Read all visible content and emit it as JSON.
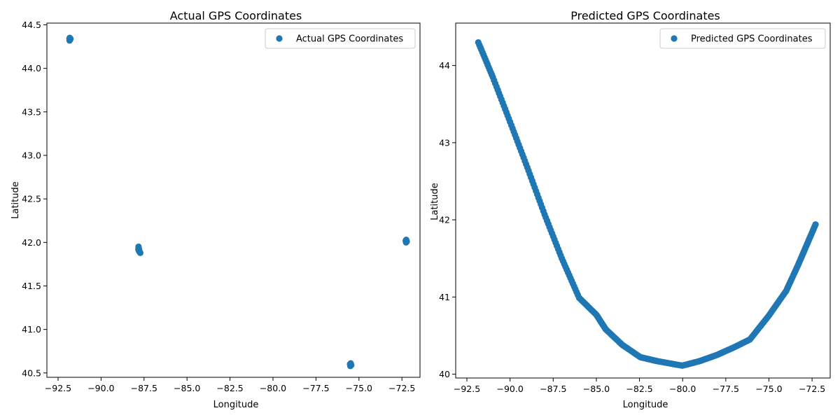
{
  "chart_data": [
    {
      "type": "scatter",
      "title": "Actual GPS Coordinates",
      "xlabel": "Longitude",
      "ylabel": "Latitude",
      "xlim": [
        -93.15,
        -71.45
      ],
      "ylim": [
        40.45,
        44.52
      ],
      "xticks": [
        -92.5,
        -90.0,
        -87.5,
        -85.0,
        -82.5,
        -80.0,
        -77.5,
        -75.0,
        -72.5
      ],
      "yticks": [
        40.5,
        41.0,
        41.5,
        42.0,
        42.5,
        43.0,
        43.5,
        44.0,
        44.5
      ],
      "xtick_labels": [
        "−92.5",
        "−90.0",
        "−87.5",
        "−85.0",
        "−82.5",
        "−80.0",
        "−77.5",
        "−75.0",
        "−72.5"
      ],
      "ytick_labels": [
        "40.5",
        "41.0",
        "41.5",
        "42.0",
        "42.5",
        "43.0",
        "43.5",
        "44.0",
        "44.5"
      ],
      "legend": "top-right",
      "grid": false,
      "color": "#1f77b4",
      "series": [
        {
          "name": "Actual GPS Coordinates",
          "points": [
            [
              -91.84,
              44.34
            ],
            [
              -91.8,
              44.33
            ],
            [
              -91.83,
              44.32
            ],
            [
              -91.78,
              44.34
            ],
            [
              -91.82,
              44.35
            ],
            [
              -87.82,
              41.95
            ],
            [
              -87.8,
              41.93
            ],
            [
              -87.78,
              41.91
            ],
            [
              -87.75,
              41.89
            ],
            [
              -87.72,
              41.88
            ],
            [
              -87.79,
              41.9
            ],
            [
              -87.83,
              41.92
            ],
            [
              -72.28,
              42.02
            ],
            [
              -72.25,
              42.03
            ],
            [
              -72.22,
              42.01
            ],
            [
              -72.26,
              42.0
            ],
            [
              -75.52,
              40.6
            ],
            [
              -75.48,
              40.61
            ],
            [
              -75.45,
              40.59
            ],
            [
              -75.5,
              40.58
            ]
          ]
        }
      ]
    },
    {
      "type": "scatter",
      "title": "Predicted GPS Coordinates",
      "xlabel": "Longitude",
      "ylabel": "Latitude",
      "xlim": [
        -93.15,
        -71.45
      ],
      "ylim": [
        39.95,
        44.55
      ],
      "xticks": [
        -92.5,
        -90.0,
        -87.5,
        -85.0,
        -82.5,
        -80.0,
        -77.5,
        -75.0,
        -72.5
      ],
      "yticks": [
        40,
        41,
        42,
        43,
        44
      ],
      "xtick_labels": [
        "−92.5",
        "−90.0",
        "−87.5",
        "−85.0",
        "−82.5",
        "−80.0",
        "−77.5",
        "−75.0",
        "−72.5"
      ],
      "ytick_labels": [
        "40",
        "41",
        "42",
        "43",
        "44"
      ],
      "legend": "top-right",
      "grid": false,
      "color": "#1f77b4",
      "series": [
        {
          "name": "Predicted GPS Coordinates",
          "points": [
            [
              -91.84,
              44.3
            ],
            [
              -91.0,
              43.85
            ],
            [
              -90.0,
              43.27
            ],
            [
              -89.0,
              42.68
            ],
            [
              -88.0,
              42.07
            ],
            [
              -87.0,
              41.5
            ],
            [
              -86.0,
              40.99
            ],
            [
              -85.0,
              40.77
            ],
            [
              -84.45,
              40.58
            ],
            [
              -83.5,
              40.38
            ],
            [
              -82.45,
              40.22
            ],
            [
              -81.5,
              40.17
            ],
            [
              -80.02,
              40.11
            ],
            [
              -79.0,
              40.17
            ],
            [
              -78.0,
              40.25
            ],
            [
              -77.0,
              40.35
            ],
            [
              -76.1,
              40.45
            ],
            [
              -75.0,
              40.76
            ],
            [
              -74.0,
              41.08
            ],
            [
              -73.3,
              41.42
            ],
            [
              -72.8,
              41.68
            ],
            [
              -72.3,
              41.94
            ]
          ]
        }
      ]
    }
  ]
}
